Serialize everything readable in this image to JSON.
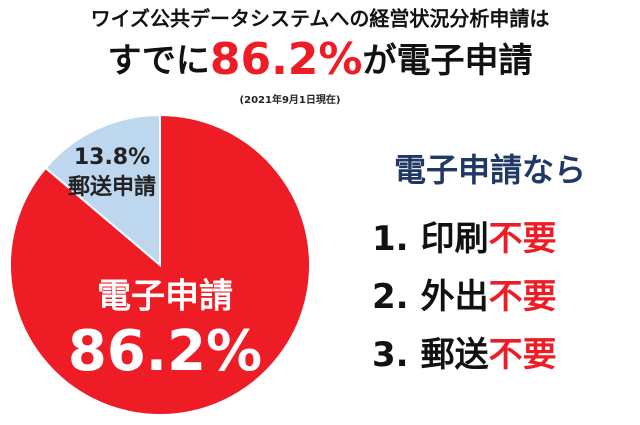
{
  "chart_data": {
    "type": "pie",
    "title": "ワイズ公共データシステムへの経営状況分析申請は",
    "headline": {
      "prefix": "すでに",
      "middle": "が"
    },
    "note": "(2021年9月1日現在)",
    "categories": [
      "電子申請",
      "郵送申請"
    ],
    "values": [
      86.2,
      13.8
    ],
    "value_labels": [
      "86.2%",
      "13.8%"
    ],
    "colors": [
      "#ee1c24",
      "#bdd7ee"
    ]
  },
  "side": {
    "heading": "電子申請なら",
    "items": [
      {
        "number": "1.",
        "text": "印刷",
        "emphasis": "不要"
      },
      {
        "number": "2.",
        "text": "外出",
        "emphasis": "不要"
      },
      {
        "number": "3.",
        "text": "郵送",
        "emphasis": "不要"
      }
    ]
  }
}
